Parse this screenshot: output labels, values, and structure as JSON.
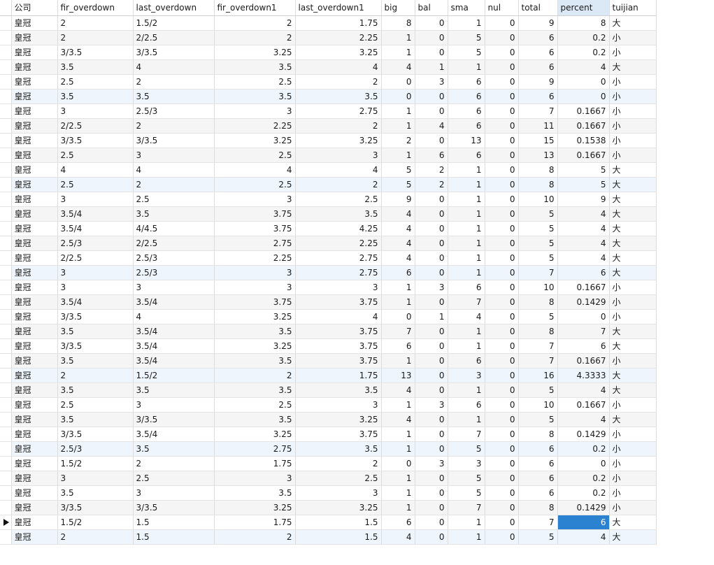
{
  "columns": [
    "公司",
    "fir_overdown",
    "last_overdown",
    "fir_overdown1",
    "last_overdown1",
    "big",
    "bal",
    "sma",
    "nul",
    "total",
    "percent",
    "tuijian"
  ],
  "sorted_column": "percent",
  "current_row": 34,
  "selected_cell_column": "percent",
  "highlighted_rows": [
    5,
    11,
    17,
    24,
    29,
    35
  ],
  "rows": [
    [
      "皇冠",
      "2",
      "1.5/2",
      "2",
      "1.75",
      "8",
      "0",
      "1",
      "0",
      "9",
      "8",
      "大"
    ],
    [
      "皇冠",
      "2",
      "2/2.5",
      "2",
      "2.25",
      "1",
      "0",
      "5",
      "0",
      "6",
      "0.2",
      "小"
    ],
    [
      "皇冠",
      "3/3.5",
      "3/3.5",
      "3.25",
      "3.25",
      "1",
      "0",
      "5",
      "0",
      "6",
      "0.2",
      "小"
    ],
    [
      "皇冠",
      "3.5",
      "4",
      "3.5",
      "4",
      "4",
      "1",
      "1",
      "0",
      "6",
      "4",
      "大"
    ],
    [
      "皇冠",
      "2.5",
      "2",
      "2.5",
      "2",
      "0",
      "3",
      "6",
      "0",
      "9",
      "0",
      "小"
    ],
    [
      "皇冠",
      "3.5",
      "3.5",
      "3.5",
      "3.5",
      "0",
      "0",
      "6",
      "0",
      "6",
      "0",
      "小"
    ],
    [
      "皇冠",
      "3",
      "2.5/3",
      "3",
      "2.75",
      "1",
      "0",
      "6",
      "0",
      "7",
      "0.1667",
      "小"
    ],
    [
      "皇冠",
      "2/2.5",
      "2",
      "2.25",
      "2",
      "1",
      "4",
      "6",
      "0",
      "11",
      "0.1667",
      "小"
    ],
    [
      "皇冠",
      "3/3.5",
      "3/3.5",
      "3.25",
      "3.25",
      "2",
      "0",
      "13",
      "0",
      "15",
      "0.1538",
      "小"
    ],
    [
      "皇冠",
      "2.5",
      "3",
      "2.5",
      "3",
      "1",
      "6",
      "6",
      "0",
      "13",
      "0.1667",
      "小"
    ],
    [
      "皇冠",
      "4",
      "4",
      "4",
      "4",
      "5",
      "2",
      "1",
      "0",
      "8",
      "5",
      "大"
    ],
    [
      "皇冠",
      "2.5",
      "2",
      "2.5",
      "2",
      "5",
      "2",
      "1",
      "0",
      "8",
      "5",
      "大"
    ],
    [
      "皇冠",
      "3",
      "2.5",
      "3",
      "2.5",
      "9",
      "0",
      "1",
      "0",
      "10",
      "9",
      "大"
    ],
    [
      "皇冠",
      "3.5/4",
      "3.5",
      "3.75",
      "3.5",
      "4",
      "0",
      "1",
      "0",
      "5",
      "4",
      "大"
    ],
    [
      "皇冠",
      "3.5/4",
      "4/4.5",
      "3.75",
      "4.25",
      "4",
      "0",
      "1",
      "0",
      "5",
      "4",
      "大"
    ],
    [
      "皇冠",
      "2.5/3",
      "2/2.5",
      "2.75",
      "2.25",
      "4",
      "0",
      "1",
      "0",
      "5",
      "4",
      "大"
    ],
    [
      "皇冠",
      "2/2.5",
      "2.5/3",
      "2.25",
      "2.75",
      "4",
      "0",
      "1",
      "0",
      "5",
      "4",
      "大"
    ],
    [
      "皇冠",
      "3",
      "2.5/3",
      "3",
      "2.75",
      "6",
      "0",
      "1",
      "0",
      "7",
      "6",
      "大"
    ],
    [
      "皇冠",
      "3",
      "3",
      "3",
      "3",
      "1",
      "3",
      "6",
      "0",
      "10",
      "0.1667",
      "小"
    ],
    [
      "皇冠",
      "3.5/4",
      "3.5/4",
      "3.75",
      "3.75",
      "1",
      "0",
      "7",
      "0",
      "8",
      "0.1429",
      "小"
    ],
    [
      "皇冠",
      "3/3.5",
      "4",
      "3.25",
      "4",
      "0",
      "1",
      "4",
      "0",
      "5",
      "0",
      "小"
    ],
    [
      "皇冠",
      "3.5",
      "3.5/4",
      "3.5",
      "3.75",
      "7",
      "0",
      "1",
      "0",
      "8",
      "7",
      "大"
    ],
    [
      "皇冠",
      "3/3.5",
      "3.5/4",
      "3.25",
      "3.75",
      "6",
      "0",
      "1",
      "0",
      "7",
      "6",
      "大"
    ],
    [
      "皇冠",
      "3.5",
      "3.5/4",
      "3.5",
      "3.75",
      "1",
      "0",
      "6",
      "0",
      "7",
      "0.1667",
      "小"
    ],
    [
      "皇冠",
      "2",
      "1.5/2",
      "2",
      "1.75",
      "13",
      "0",
      "3",
      "0",
      "16",
      "4.3333",
      "大"
    ],
    [
      "皇冠",
      "3.5",
      "3.5",
      "3.5",
      "3.5",
      "4",
      "0",
      "1",
      "0",
      "5",
      "4",
      "大"
    ],
    [
      "皇冠",
      "2.5",
      "3",
      "2.5",
      "3",
      "1",
      "3",
      "6",
      "0",
      "10",
      "0.1667",
      "小"
    ],
    [
      "皇冠",
      "3.5",
      "3/3.5",
      "3.5",
      "3.25",
      "4",
      "0",
      "1",
      "0",
      "5",
      "4",
      "大"
    ],
    [
      "皇冠",
      "3/3.5",
      "3.5/4",
      "3.25",
      "3.75",
      "1",
      "0",
      "7",
      "0",
      "8",
      "0.1429",
      "小"
    ],
    [
      "皇冠",
      "2.5/3",
      "3.5",
      "2.75",
      "3.5",
      "1",
      "0",
      "5",
      "0",
      "6",
      "0.2",
      "小"
    ],
    [
      "皇冠",
      "1.5/2",
      "2",
      "1.75",
      "2",
      "0",
      "3",
      "3",
      "0",
      "6",
      "0",
      "小"
    ],
    [
      "皇冠",
      "3",
      "2.5",
      "3",
      "2.5",
      "1",
      "0",
      "5",
      "0",
      "6",
      "0.2",
      "小"
    ],
    [
      "皇冠",
      "3.5",
      "3",
      "3.5",
      "3",
      "1",
      "0",
      "5",
      "0",
      "6",
      "0.2",
      "小"
    ],
    [
      "皇冠",
      "3/3.5",
      "3/3.5",
      "3.25",
      "3.25",
      "1",
      "0",
      "7",
      "0",
      "8",
      "0.1429",
      "小"
    ],
    [
      "皇冠",
      "1.5/2",
      "1.5",
      "1.75",
      "1.5",
      "6",
      "0",
      "1",
      "0",
      "7",
      "6",
      "大"
    ],
    [
      "皇冠",
      "2",
      "1.5",
      "2",
      "1.5",
      "4",
      "0",
      "1",
      "0",
      "5",
      "4",
      "大"
    ]
  ]
}
